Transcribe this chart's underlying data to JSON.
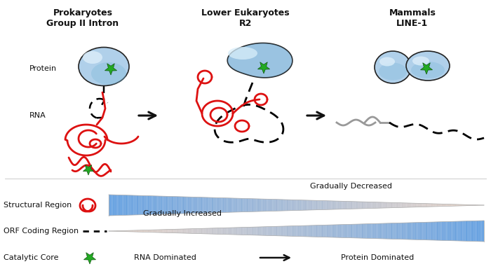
{
  "bg_color": "#ffffff",
  "title_prokaryotes": "Prokaryotes",
  "subtitle_prokaryotes": "Group II Intron",
  "title_lower_euk": "Lower Eukaryotes",
  "subtitle_lower_euk": "R2",
  "title_mammals": "Mammals",
  "subtitle_mammals": "LINE-1",
  "label_protein": "Protein",
  "label_rna": "RNA",
  "label_structural": "Structural Region",
  "label_orf": "ORF Coding Region",
  "label_catalytic": "Catalytic Core",
  "label_rna_dom": "RNA Dominated",
  "label_protein_dom": "Protein Dominated",
  "label_grad_dec": "Gradually Decreased",
  "label_grad_inc": "Gradually Increased",
  "blue_light": "#b0d0ea",
  "blue_mid": "#6aaed6",
  "blue_dark": "#2e7fb8",
  "rna_red": "#dd1111",
  "star_green": "#22aa22",
  "outline_color": "#222222",
  "text_color": "#111111",
  "arrow_color": "#111111",
  "gray_line": "#999999"
}
